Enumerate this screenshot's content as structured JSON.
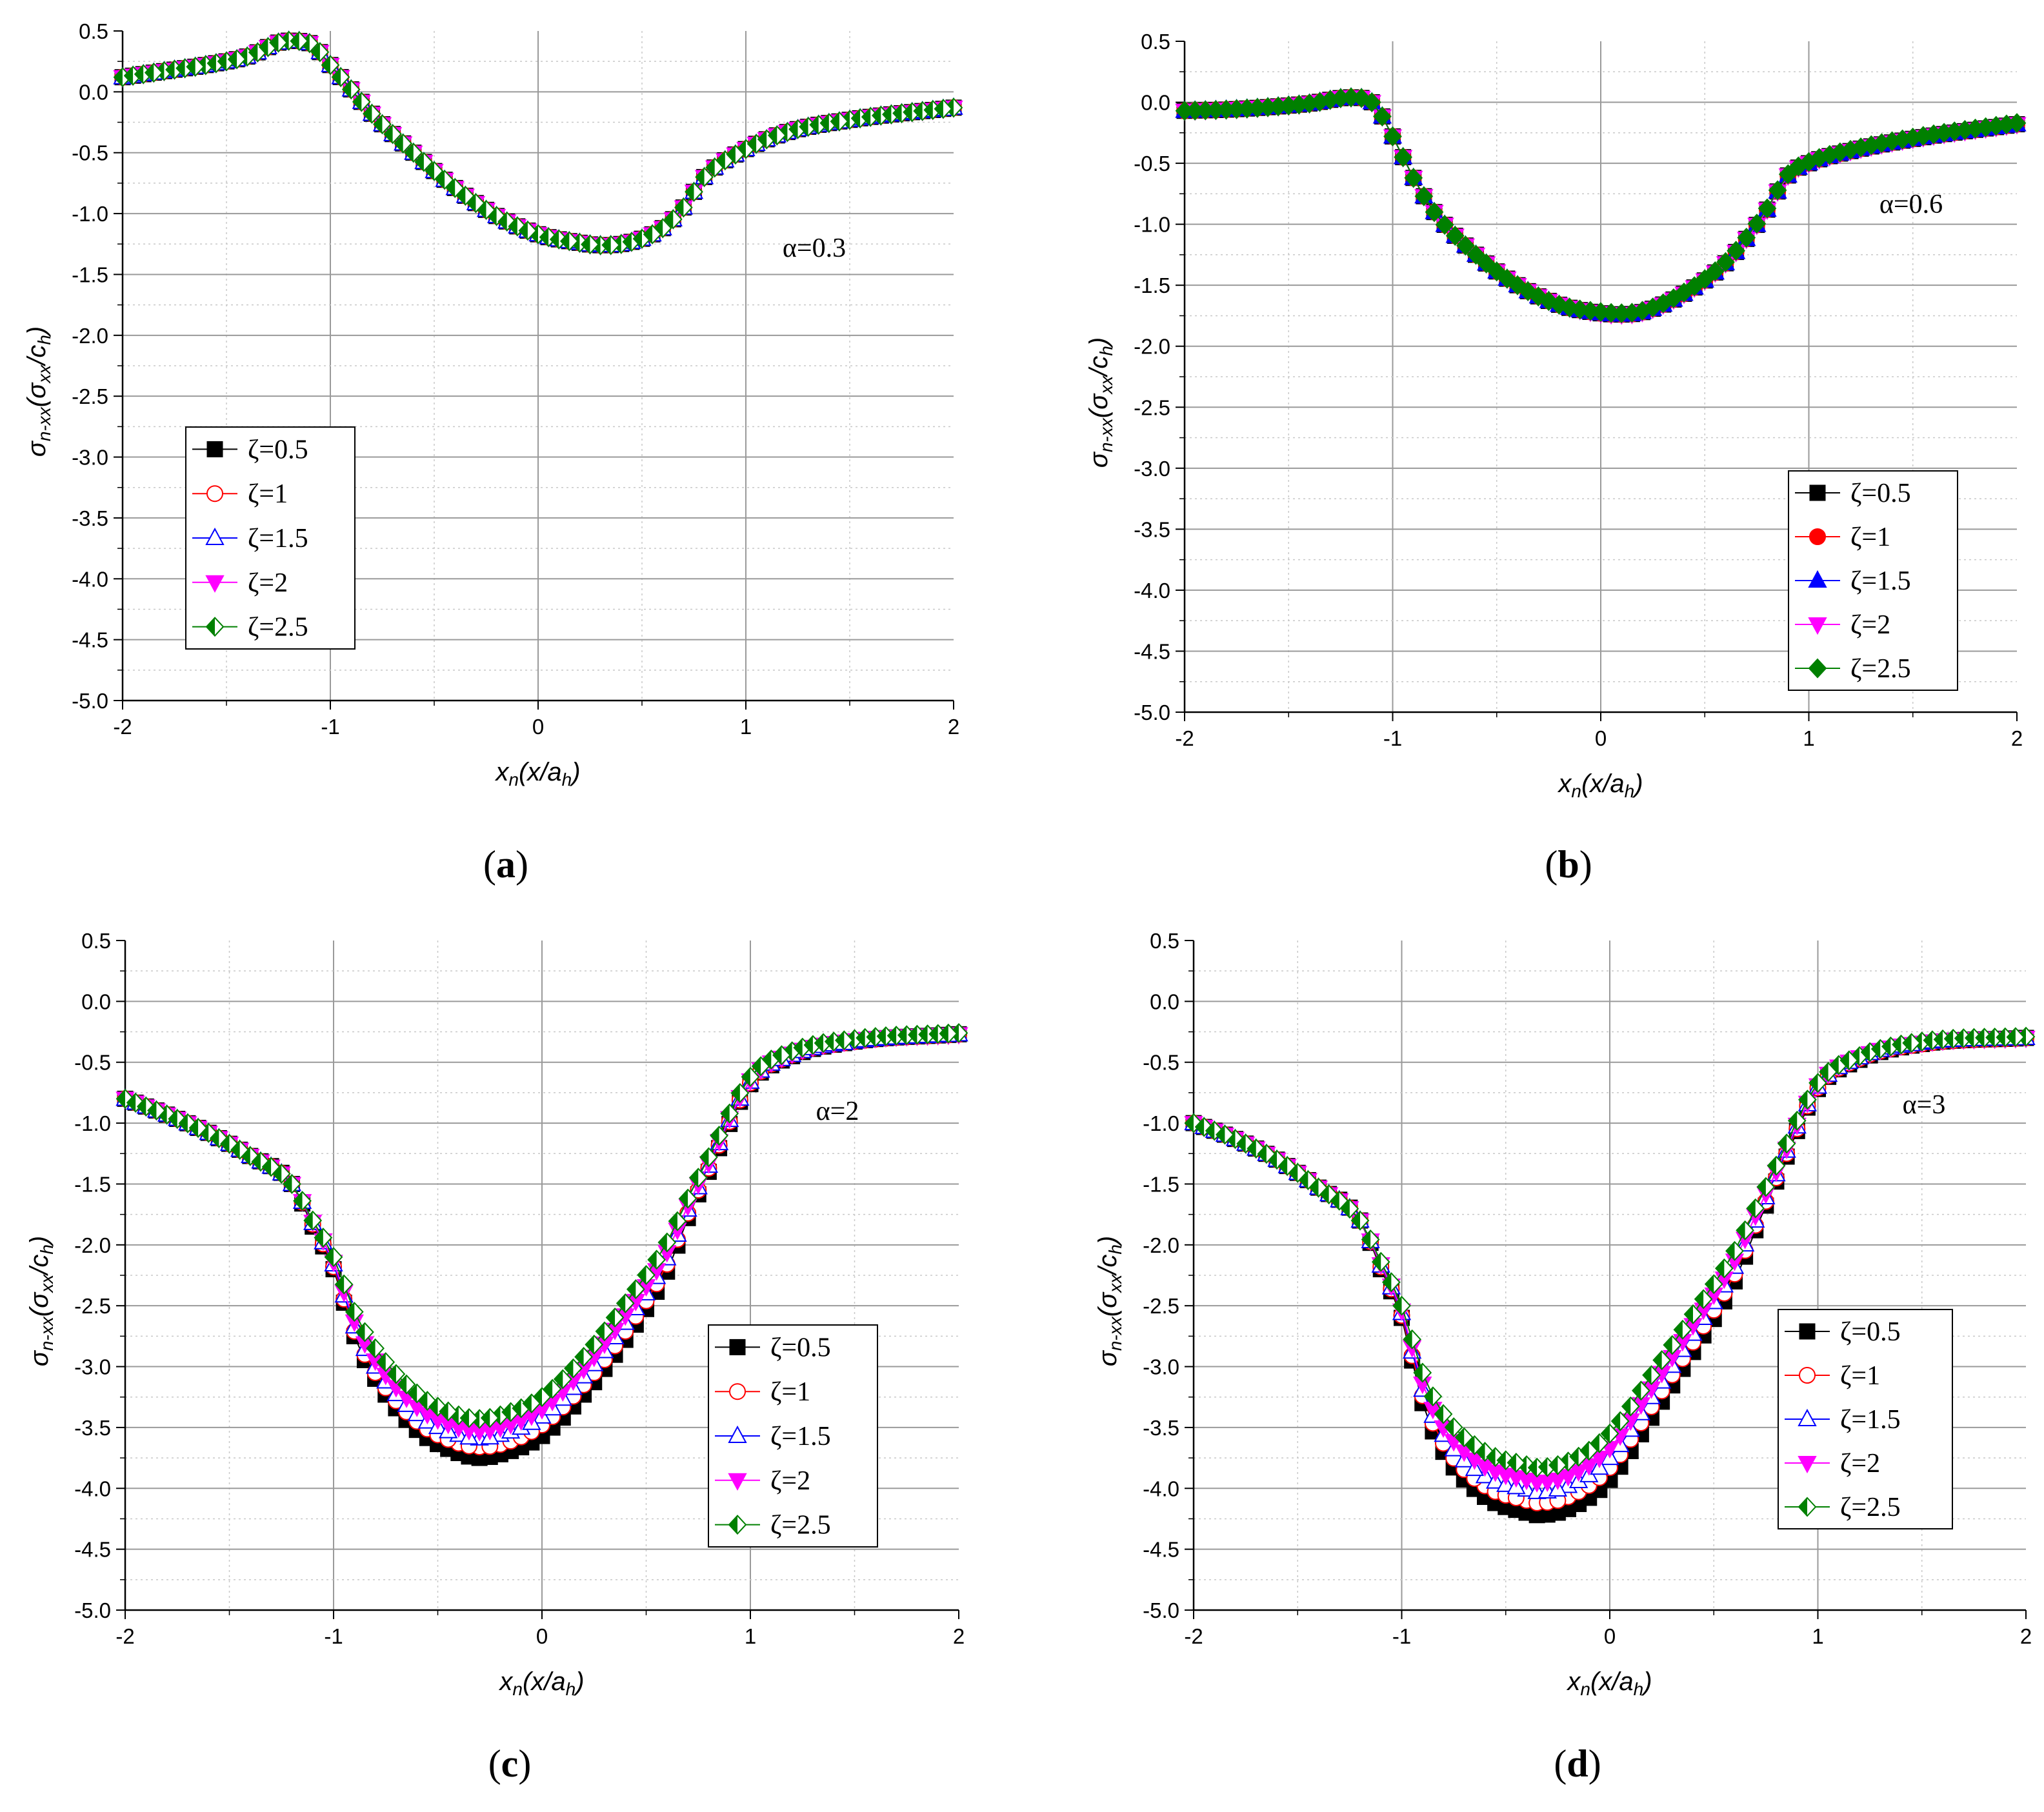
{
  "chart_data": [
    {
      "type": "line",
      "panel": "(a)",
      "panel_letter": "a",
      "title": "",
      "xlabel": "xn(x/ah)",
      "xlabel_main": "x",
      "xlabel_sub": "n",
      "xlabel_paren": "(x/a",
      "xlabel_paren_sub": "h",
      "xlabel_close": ")",
      "ylabel": "σn-xx(σxx/ch)",
      "ylabel_main": "σ",
      "ylabel_sub": "n-xx",
      "ylabel_paren": "(σ",
      "ylabel_paren_sub": "xx",
      "ylabel_slash": "/c",
      "ylabel_slash_sub": "h",
      "ylabel_close": ")",
      "xlim": [
        -2,
        2
      ],
      "ylim": [
        -5.0,
        0.5
      ],
      "xticks": [
        "-2",
        "-1",
        "0",
        "1",
        "2"
      ],
      "yticks": [
        "0.5",
        "0.0",
        "-0.5",
        "-1.0",
        "-1.5",
        "-2.0",
        "-2.5",
        "-3.0",
        "-3.5",
        "-4.0",
        "-4.5",
        "-5.0"
      ],
      "annotation": "α=0.3",
      "legend_position": "lower-left",
      "marker_fill": "open",
      "x": [
        -2.0,
        -1.8,
        -1.6,
        -1.4,
        -1.2,
        -1.1,
        -1.0,
        -0.9,
        -0.8,
        -0.6,
        -0.4,
        -0.2,
        0.0,
        0.2,
        0.3,
        0.4,
        0.6,
        0.7,
        0.8,
        1.0,
        1.2,
        1.5,
        2.0
      ],
      "series": [
        {
          "name": "ζ=0.5",
          "marker": "square",
          "color": "#000000",
          "values": [
            0.12,
            0.17,
            0.22,
            0.29,
            0.42,
            0.4,
            0.22,
            0.02,
            -0.18,
            -0.5,
            -0.79,
            -1.02,
            -1.17,
            -1.24,
            -1.26,
            -1.25,
            -1.12,
            -0.95,
            -0.7,
            -0.47,
            -0.33,
            -0.23,
            -0.13
          ]
        },
        {
          "name": "ζ=1",
          "marker": "circle-open",
          "color": "#ff0000",
          "values": [
            0.12,
            0.17,
            0.22,
            0.29,
            0.42,
            0.4,
            0.22,
            0.02,
            -0.18,
            -0.5,
            -0.79,
            -1.02,
            -1.17,
            -1.24,
            -1.26,
            -1.25,
            -1.12,
            -0.95,
            -0.7,
            -0.47,
            -0.33,
            -0.23,
            -0.13
          ]
        },
        {
          "name": "ζ=1.5",
          "marker": "triangle-up-open",
          "color": "#0000ff",
          "values": [
            0.12,
            0.17,
            0.22,
            0.29,
            0.42,
            0.4,
            0.22,
            0.02,
            -0.18,
            -0.5,
            -0.79,
            -1.02,
            -1.17,
            -1.24,
            -1.26,
            -1.25,
            -1.12,
            -0.95,
            -0.7,
            -0.47,
            -0.33,
            -0.23,
            -0.13
          ]
        },
        {
          "name": "ζ=2",
          "marker": "triangle-down",
          "color": "#ff00ff",
          "values": [
            0.12,
            0.17,
            0.22,
            0.29,
            0.42,
            0.4,
            0.22,
            0.02,
            -0.18,
            -0.5,
            -0.79,
            -1.02,
            -1.17,
            -1.24,
            -1.26,
            -1.25,
            -1.12,
            -0.95,
            -0.7,
            -0.47,
            -0.33,
            -0.23,
            -0.13
          ]
        },
        {
          "name": "ζ=2.5",
          "marker": "diamond-half",
          "color": "#008000",
          "values": [
            0.12,
            0.17,
            0.22,
            0.29,
            0.42,
            0.4,
            0.22,
            0.02,
            -0.18,
            -0.5,
            -0.79,
            -1.02,
            -1.17,
            -1.24,
            -1.26,
            -1.25,
            -1.12,
            -0.95,
            -0.7,
            -0.47,
            -0.33,
            -0.23,
            -0.13
          ]
        }
      ]
    },
    {
      "type": "line",
      "panel": "(b)",
      "panel_letter": "b",
      "title": "",
      "xlabel": "xn(x/ah)",
      "xlabel_main": "x",
      "xlabel_sub": "n",
      "xlabel_paren": "(x/a",
      "xlabel_paren_sub": "h",
      "xlabel_close": ")",
      "ylabel": "σn-xx(σxx/ch)",
      "ylabel_main": "σ",
      "ylabel_sub": "n-xx",
      "ylabel_paren": "(σ",
      "ylabel_paren_sub": "xx",
      "ylabel_slash": "/c",
      "ylabel_slash_sub": "h",
      "ylabel_close": ")",
      "xlim": [
        -2,
        2
      ],
      "ylim": [
        -5.0,
        0.5
      ],
      "xticks": [
        "-2",
        "-1",
        "0",
        "1",
        "2"
      ],
      "yticks": [
        "0.5",
        "0.0",
        "-0.5",
        "-1.0",
        "-1.5",
        "-2.0",
        "-2.5",
        "-3.0",
        "-3.5",
        "-4.0",
        "-4.5",
        "-5.0"
      ],
      "annotation": "α=0.6",
      "legend_position": "lower-right",
      "marker_fill": "filled",
      "x": [
        -2.0,
        -1.8,
        -1.6,
        -1.4,
        -1.2,
        -1.1,
        -1.0,
        -0.9,
        -0.8,
        -0.6,
        -0.4,
        -0.2,
        0.0,
        0.1,
        0.2,
        0.4,
        0.6,
        0.7,
        0.8,
        0.9,
        1.0,
        1.2,
        1.5,
        2.0
      ],
      "series": [
        {
          "name": "ζ=0.5",
          "marker": "square",
          "color": "#000000",
          "values": [
            -0.07,
            -0.06,
            -0.04,
            -0.01,
            0.04,
            0.0,
            -0.28,
            -0.62,
            -0.9,
            -1.25,
            -1.5,
            -1.66,
            -1.73,
            -1.74,
            -1.72,
            -1.57,
            -1.32,
            -1.12,
            -0.88,
            -0.6,
            -0.5,
            -0.4,
            -0.3,
            -0.18
          ]
        },
        {
          "name": "ζ=1",
          "marker": "circle",
          "color": "#ff0000",
          "values": [
            -0.07,
            -0.06,
            -0.04,
            -0.01,
            0.04,
            0.0,
            -0.28,
            -0.62,
            -0.9,
            -1.25,
            -1.5,
            -1.66,
            -1.73,
            -1.74,
            -1.72,
            -1.57,
            -1.32,
            -1.12,
            -0.88,
            -0.6,
            -0.5,
            -0.4,
            -0.3,
            -0.18
          ]
        },
        {
          "name": "ζ=1.5",
          "marker": "triangle-up",
          "color": "#0000ff",
          "values": [
            -0.07,
            -0.06,
            -0.04,
            -0.01,
            0.04,
            0.0,
            -0.28,
            -0.62,
            -0.9,
            -1.25,
            -1.5,
            -1.66,
            -1.73,
            -1.74,
            -1.72,
            -1.57,
            -1.32,
            -1.12,
            -0.88,
            -0.6,
            -0.5,
            -0.4,
            -0.3,
            -0.18
          ]
        },
        {
          "name": "ζ=2",
          "marker": "triangle-down",
          "color": "#ff00ff",
          "values": [
            -0.07,
            -0.06,
            -0.04,
            -0.01,
            0.04,
            0.0,
            -0.28,
            -0.62,
            -0.9,
            -1.25,
            -1.5,
            -1.66,
            -1.73,
            -1.74,
            -1.72,
            -1.57,
            -1.32,
            -1.12,
            -0.88,
            -0.6,
            -0.5,
            -0.4,
            -0.3,
            -0.18
          ]
        },
        {
          "name": "ζ=2.5",
          "marker": "diamond",
          "color": "#008000",
          "values": [
            -0.07,
            -0.06,
            -0.04,
            -0.01,
            0.04,
            0.0,
            -0.28,
            -0.62,
            -0.9,
            -1.25,
            -1.5,
            -1.66,
            -1.72,
            -1.73,
            -1.71,
            -1.56,
            -1.31,
            -1.11,
            -0.87,
            -0.59,
            -0.49,
            -0.39,
            -0.29,
            -0.17
          ]
        }
      ]
    },
    {
      "type": "line",
      "panel": "(c)",
      "panel_letter": "c",
      "title": "",
      "xlabel": "xn(x/ah)",
      "xlabel_main": "x",
      "xlabel_sub": "n",
      "xlabel_paren": "(x/a",
      "xlabel_paren_sub": "h",
      "xlabel_close": ")",
      "ylabel": "σn-xx(σxx/ch)",
      "ylabel_main": "σ",
      "ylabel_sub": "n-xx",
      "ylabel_paren": "(σ",
      "ylabel_paren_sub": "xx",
      "ylabel_slash": "/c",
      "ylabel_slash_sub": "h",
      "ylabel_close": ")",
      "xlim": [
        -2,
        2
      ],
      "ylim": [
        -5.0,
        0.5
      ],
      "xticks": [
        "-2",
        "-1",
        "0",
        "1",
        "2"
      ],
      "yticks": [
        "0.5",
        "0.0",
        "-0.5",
        "-1.0",
        "-1.5",
        "-2.0",
        "-2.5",
        "-3.0",
        "-3.5",
        "-4.0",
        "-4.5",
        "-5.0"
      ],
      "annotation": "α=2",
      "legend_position": "lower-right",
      "marker_fill": "open",
      "x": [
        -2.0,
        -1.8,
        -1.6,
        -1.4,
        -1.2,
        -1.1,
        -1.0,
        -0.9,
        -0.8,
        -0.6,
        -0.4,
        -0.3,
        -0.2,
        0.0,
        0.2,
        0.4,
        0.6,
        0.7,
        0.8,
        1.0,
        1.2,
        1.5,
        2.0
      ],
      "series": [
        {
          "name": "ζ=0.5",
          "marker": "square",
          "color": "#000000",
          "values": [
            -0.8,
            -0.93,
            -1.08,
            -1.27,
            -1.5,
            -1.85,
            -2.2,
            -2.75,
            -3.1,
            -3.52,
            -3.71,
            -3.75,
            -3.72,
            -3.57,
            -3.23,
            -2.78,
            -2.22,
            -1.78,
            -1.4,
            -0.68,
            -0.45,
            -0.33,
            -0.27
          ]
        },
        {
          "name": "ζ=1",
          "marker": "circle-open",
          "color": "#ff0000",
          "values": [
            -0.8,
            -0.93,
            -1.08,
            -1.27,
            -1.5,
            -1.83,
            -2.18,
            -2.71,
            -3.05,
            -3.45,
            -3.63,
            -3.66,
            -3.64,
            -3.48,
            -3.15,
            -2.71,
            -2.16,
            -1.74,
            -1.37,
            -0.67,
            -0.44,
            -0.33,
            -0.27
          ]
        },
        {
          "name": "ζ=1.5",
          "marker": "triangle-up-open",
          "color": "#0000ff",
          "values": [
            -0.8,
            -0.93,
            -1.08,
            -1.27,
            -1.5,
            -1.82,
            -2.16,
            -2.67,
            -3.0,
            -3.39,
            -3.56,
            -3.59,
            -3.56,
            -3.41,
            -3.08,
            -2.64,
            -2.11,
            -1.71,
            -1.35,
            -0.66,
            -0.44,
            -0.33,
            -0.27
          ]
        },
        {
          "name": "ζ=2",
          "marker": "triangle-down",
          "color": "#ff00ff",
          "values": [
            -0.8,
            -0.93,
            -1.08,
            -1.27,
            -1.5,
            -1.81,
            -2.14,
            -2.63,
            -2.95,
            -3.33,
            -3.5,
            -3.53,
            -3.5,
            -3.35,
            -3.02,
            -2.58,
            -2.06,
            -1.68,
            -1.33,
            -0.65,
            -0.43,
            -0.32,
            -0.27
          ]
        },
        {
          "name": "ζ=2.5",
          "marker": "diamond-half",
          "color": "#008000",
          "values": [
            -0.8,
            -0.93,
            -1.08,
            -1.27,
            -1.5,
            -1.8,
            -2.1,
            -2.55,
            -2.85,
            -3.22,
            -3.4,
            -3.43,
            -3.4,
            -3.25,
            -2.92,
            -2.48,
            -1.98,
            -1.62,
            -1.28,
            -0.62,
            -0.41,
            -0.31,
            -0.26
          ]
        }
      ]
    },
    {
      "type": "line",
      "panel": "(d)",
      "panel_letter": "d",
      "title": "",
      "xlabel": "xn(x/ah)",
      "xlabel_main": "x",
      "xlabel_sub": "n",
      "xlabel_paren": "(x/a",
      "xlabel_paren_sub": "h",
      "xlabel_close": ")",
      "ylabel": "σn-xx(σxx/ch)",
      "ylabel_main": "σ",
      "ylabel_sub": "n-xx",
      "ylabel_paren": "(σ",
      "ylabel_paren_sub": "xx",
      "ylabel_slash": "/c",
      "ylabel_slash_sub": "h",
      "ylabel_close": ")",
      "xlim": [
        -2,
        2
      ],
      "ylim": [
        -5.0,
        0.5
      ],
      "xticks": [
        "-2",
        "-1",
        "0",
        "1",
        "2"
      ],
      "yticks": [
        "0.5",
        "0.0",
        "-0.5",
        "-1.0",
        "-1.5",
        "-2.0",
        "-2.5",
        "-3.0",
        "-3.5",
        "-4.0",
        "-4.5",
        "-5.0"
      ],
      "annotation": "α=3",
      "legend_position": "lower-right",
      "marker_fill": "open",
      "x": [
        -2.0,
        -1.8,
        -1.6,
        -1.4,
        -1.2,
        -1.1,
        -1.0,
        -0.9,
        -0.8,
        -0.6,
        -0.4,
        -0.35,
        -0.2,
        0.0,
        0.2,
        0.4,
        0.6,
        0.7,
        0.8,
        1.0,
        1.2,
        1.5,
        2.0
      ],
      "series": [
        {
          "name": "ζ=0.5",
          "marker": "square",
          "color": "#000000",
          "values": [
            -1.0,
            -1.13,
            -1.3,
            -1.53,
            -1.8,
            -2.2,
            -2.6,
            -3.3,
            -3.7,
            -4.07,
            -4.2,
            -4.22,
            -4.17,
            -3.93,
            -3.42,
            -2.88,
            -2.3,
            -1.88,
            -1.48,
            -0.72,
            -0.48,
            -0.35,
            -0.3
          ]
        },
        {
          "name": "ζ=1",
          "marker": "circle-open",
          "color": "#ff0000",
          "values": [
            -1.0,
            -1.13,
            -1.3,
            -1.53,
            -1.8,
            -2.18,
            -2.58,
            -3.24,
            -3.63,
            -3.98,
            -4.1,
            -4.12,
            -4.07,
            -3.83,
            -3.33,
            -2.8,
            -2.24,
            -1.84,
            -1.45,
            -0.71,
            -0.47,
            -0.35,
            -0.3
          ]
        },
        {
          "name": "ζ=1.5",
          "marker": "triangle-up-open",
          "color": "#0000ff",
          "values": [
            -1.0,
            -1.13,
            -1.3,
            -1.53,
            -1.8,
            -2.17,
            -2.56,
            -3.19,
            -3.56,
            -3.9,
            -4.01,
            -4.03,
            -3.98,
            -3.75,
            -3.25,
            -2.73,
            -2.18,
            -1.8,
            -1.42,
            -0.7,
            -0.46,
            -0.34,
            -0.3
          ]
        },
        {
          "name": "ζ=2",
          "marker": "triangle-down",
          "color": "#ff00ff",
          "values": [
            -1.0,
            -1.13,
            -1.3,
            -1.53,
            -1.8,
            -2.16,
            -2.54,
            -3.14,
            -3.5,
            -3.82,
            -3.93,
            -3.95,
            -3.9,
            -3.67,
            -3.18,
            -2.66,
            -2.13,
            -1.76,
            -1.4,
            -0.69,
            -0.46,
            -0.34,
            -0.3
          ]
        },
        {
          "name": "ζ=2.5",
          "marker": "diamond-half",
          "color": "#008000",
          "values": [
            -1.0,
            -1.13,
            -1.3,
            -1.53,
            -1.8,
            -2.14,
            -2.5,
            -3.05,
            -3.39,
            -3.7,
            -3.81,
            -3.83,
            -3.78,
            -3.55,
            -3.07,
            -2.57,
            -2.05,
            -1.7,
            -1.35,
            -0.67,
            -0.45,
            -0.33,
            -0.29
          ]
        }
      ]
    }
  ]
}
